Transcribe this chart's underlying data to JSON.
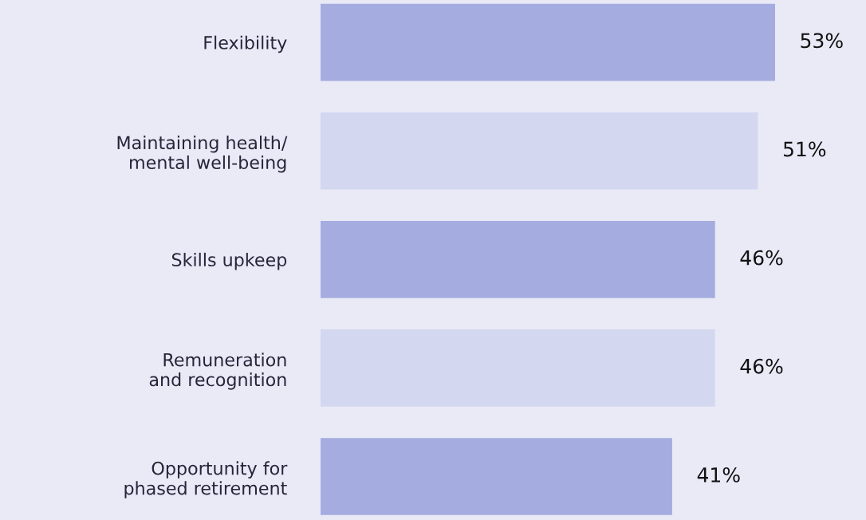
{
  "chart_data": {
    "type": "bar",
    "orientation": "horizontal",
    "categories": [
      "Flexibility",
      "Maintaining health/\nmental well-being",
      "Skills upkeep",
      "Remuneration\nand recognition",
      "Opportunity for\nphased retirement"
    ],
    "values": [
      53,
      51,
      46,
      46,
      41
    ],
    "colors": [
      "#a5acdf",
      "#d3d7f0",
      "#a5acdf",
      "#d3d7f0",
      "#a5acdf"
    ],
    "value_labels": [
      "53%",
      "51%",
      "46%",
      "46%",
      "41%"
    ],
    "grid": false,
    "legend": false
  }
}
